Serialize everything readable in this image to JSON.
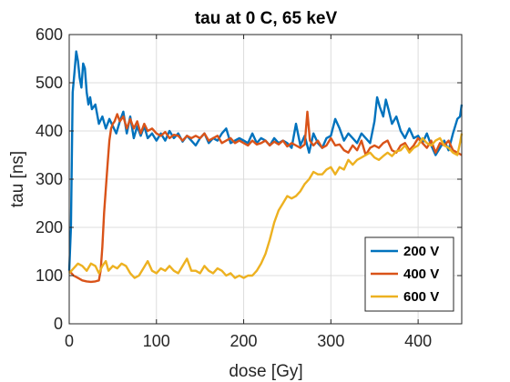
{
  "chart_data": {
    "type": "line",
    "title": "tau at 0 C, 65 keV",
    "xlabel": "dose [Gy]",
    "ylabel": "tau [ns]",
    "xlim": [
      0,
      450
    ],
    "ylim": [
      0,
      600
    ],
    "xticks": [
      0,
      100,
      200,
      300,
      400
    ],
    "yticks": [
      0,
      100,
      200,
      300,
      400,
      500,
      600
    ],
    "grid": true,
    "legend_position": "bottom-right",
    "series": [
      {
        "name": "200 V",
        "color": "#0072BD",
        "points": [
          [
            0,
            110
          ],
          [
            2,
            200
          ],
          [
            4,
            480
          ],
          [
            6,
            520
          ],
          [
            8,
            565
          ],
          [
            10,
            545
          ],
          [
            12,
            510
          ],
          [
            14,
            490
          ],
          [
            16,
            540
          ],
          [
            18,
            530
          ],
          [
            20,
            480
          ],
          [
            22,
            455
          ],
          [
            24,
            470
          ],
          [
            26,
            445
          ],
          [
            30,
            455
          ],
          [
            34,
            415
          ],
          [
            38,
            430
          ],
          [
            42,
            405
          ],
          [
            46,
            425
          ],
          [
            50,
            410
          ],
          [
            54,
            395
          ],
          [
            58,
            420
          ],
          [
            62,
            440
          ],
          [
            66,
            395
          ],
          [
            70,
            430
          ],
          [
            74,
            385
          ],
          [
            78,
            410
          ],
          [
            82,
            390
          ],
          [
            86,
            410
          ],
          [
            90,
            385
          ],
          [
            95,
            395
          ],
          [
            100,
            380
          ],
          [
            105,
            395
          ],
          [
            110,
            380
          ],
          [
            115,
            400
          ],
          [
            120,
            385
          ],
          [
            125,
            395
          ],
          [
            130,
            378
          ],
          [
            135,
            390
          ],
          [
            140,
            380
          ],
          [
            145,
            370
          ],
          [
            150,
            385
          ],
          [
            155,
            395
          ],
          [
            160,
            375
          ],
          [
            165,
            385
          ],
          [
            170,
            380
          ],
          [
            175,
            395
          ],
          [
            180,
            405
          ],
          [
            185,
            375
          ],
          [
            190,
            380
          ],
          [
            195,
            385
          ],
          [
            200,
            380
          ],
          [
            205,
            375
          ],
          [
            210,
            395
          ],
          [
            215,
            375
          ],
          [
            220,
            385
          ],
          [
            225,
            380
          ],
          [
            230,
            370
          ],
          [
            235,
            385
          ],
          [
            240,
            375
          ],
          [
            245,
            380
          ],
          [
            250,
            375
          ],
          [
            255,
            365
          ],
          [
            260,
            415
          ],
          [
            265,
            370
          ],
          [
            270,
            390
          ],
          [
            275,
            355
          ],
          [
            280,
            395
          ],
          [
            285,
            375
          ],
          [
            290,
            365
          ],
          [
            295,
            385
          ],
          [
            300,
            390
          ],
          [
            305,
            425
          ],
          [
            310,
            405
          ],
          [
            315,
            380
          ],
          [
            320,
            395
          ],
          [
            325,
            385
          ],
          [
            330,
            375
          ],
          [
            335,
            395
          ],
          [
            340,
            385
          ],
          [
            345,
            375
          ],
          [
            350,
            420
          ],
          [
            353,
            470
          ],
          [
            356,
            450
          ],
          [
            360,
            430
          ],
          [
            363,
            465
          ],
          [
            366,
            445
          ],
          [
            370,
            415
          ],
          [
            375,
            430
          ],
          [
            380,
            400
          ],
          [
            385,
            385
          ],
          [
            390,
            405
          ],
          [
            395,
            385
          ],
          [
            400,
            390
          ],
          [
            405,
            375
          ],
          [
            410,
            395
          ],
          [
            415,
            370
          ],
          [
            420,
            350
          ],
          [
            425,
            365
          ],
          [
            430,
            380
          ],
          [
            435,
            360
          ],
          [
            440,
            395
          ],
          [
            445,
            425
          ],
          [
            448,
            430
          ],
          [
            450,
            455
          ]
        ]
      },
      {
        "name": "400 V",
        "color": "#D95319",
        "points": [
          [
            0,
            110
          ],
          [
            5,
            100
          ],
          [
            10,
            95
          ],
          [
            15,
            90
          ],
          [
            20,
            88
          ],
          [
            25,
            87
          ],
          [
            30,
            88
          ],
          [
            34,
            90
          ],
          [
            36,
            110
          ],
          [
            38,
            160
          ],
          [
            40,
            230
          ],
          [
            42,
            280
          ],
          [
            44,
            330
          ],
          [
            46,
            380
          ],
          [
            48,
            405
          ],
          [
            50,
            415
          ],
          [
            52,
            420
          ],
          [
            55,
            435
          ],
          [
            58,
            420
          ],
          [
            62,
            430
          ],
          [
            66,
            405
          ],
          [
            70,
            425
          ],
          [
            74,
            405
          ],
          [
            78,
            420
          ],
          [
            82,
            395
          ],
          [
            86,
            415
          ],
          [
            90,
            400
          ],
          [
            95,
            405
          ],
          [
            100,
            395
          ],
          [
            105,
            390
          ],
          [
            110,
            398
          ],
          [
            115,
            385
          ],
          [
            120,
            392
          ],
          [
            125,
            390
          ],
          [
            130,
            380
          ],
          [
            135,
            390
          ],
          [
            140,
            385
          ],
          [
            145,
            390
          ],
          [
            150,
            385
          ],
          [
            155,
            395
          ],
          [
            160,
            380
          ],
          [
            165,
            385
          ],
          [
            170,
            390
          ],
          [
            175,
            375
          ],
          [
            180,
            380
          ],
          [
            185,
            385
          ],
          [
            190,
            375
          ],
          [
            195,
            380
          ],
          [
            200,
            375
          ],
          [
            205,
            370
          ],
          [
            210,
            380
          ],
          [
            215,
            372
          ],
          [
            220,
            375
          ],
          [
            225,
            380
          ],
          [
            230,
            370
          ],
          [
            235,
            378
          ],
          [
            240,
            372
          ],
          [
            245,
            380
          ],
          [
            250,
            368
          ],
          [
            255,
            375
          ],
          [
            260,
            370
          ],
          [
            265,
            365
          ],
          [
            270,
            372
          ],
          [
            273,
            440
          ],
          [
            276,
            380
          ],
          [
            280,
            370
          ],
          [
            285,
            380
          ],
          [
            290,
            365
          ],
          [
            295,
            370
          ],
          [
            300,
            385
          ],
          [
            305,
            370
          ],
          [
            310,
            372
          ],
          [
            315,
            360
          ],
          [
            320,
            355
          ],
          [
            325,
            370
          ],
          [
            330,
            360
          ],
          [
            335,
            380
          ],
          [
            340,
            350
          ],
          [
            345,
            365
          ],
          [
            350,
            370
          ],
          [
            355,
            365
          ],
          [
            360,
            375
          ],
          [
            365,
            380
          ],
          [
            370,
            360
          ],
          [
            375,
            355
          ],
          [
            380,
            370
          ],
          [
            385,
            375
          ],
          [
            390,
            360
          ],
          [
            395,
            370
          ],
          [
            400,
            385
          ],
          [
            405,
            375
          ],
          [
            410,
            365
          ],
          [
            415,
            380
          ],
          [
            420,
            355
          ],
          [
            425,
            375
          ],
          [
            430,
            370
          ],
          [
            435,
            380
          ],
          [
            440,
            360
          ],
          [
            445,
            355
          ],
          [
            450,
            350
          ]
        ]
      },
      {
        "name": "600 V",
        "color": "#EDB120",
        "points": [
          [
            0,
            105
          ],
          [
            5,
            115
          ],
          [
            10,
            125
          ],
          [
            15,
            120
          ],
          [
            20,
            110
          ],
          [
            25,
            125
          ],
          [
            30,
            120
          ],
          [
            34,
            105
          ],
          [
            38,
            120
          ],
          [
            42,
            130
          ],
          [
            45,
            110
          ],
          [
            50,
            120
          ],
          [
            55,
            115
          ],
          [
            60,
            125
          ],
          [
            65,
            120
          ],
          [
            70,
            105
          ],
          [
            75,
            95
          ],
          [
            80,
            100
          ],
          [
            85,
            115
          ],
          [
            90,
            130
          ],
          [
            95,
            110
          ],
          [
            100,
            105
          ],
          [
            105,
            115
          ],
          [
            110,
            110
          ],
          [
            115,
            120
          ],
          [
            120,
            110
          ],
          [
            125,
            105
          ],
          [
            130,
            120
          ],
          [
            135,
            135
          ],
          [
            140,
            110
          ],
          [
            145,
            110
          ],
          [
            150,
            105
          ],
          [
            155,
            120
          ],
          [
            160,
            110
          ],
          [
            165,
            105
          ],
          [
            170,
            115
          ],
          [
            175,
            110
          ],
          [
            180,
            100
          ],
          [
            185,
            105
          ],
          [
            190,
            95
          ],
          [
            195,
            100
          ],
          [
            200,
            95
          ],
          [
            205,
            100
          ],
          [
            210,
            100
          ],
          [
            215,
            110
          ],
          [
            220,
            125
          ],
          [
            225,
            145
          ],
          [
            230,
            175
          ],
          [
            235,
            210
          ],
          [
            240,
            235
          ],
          [
            245,
            250
          ],
          [
            250,
            265
          ],
          [
            255,
            260
          ],
          [
            260,
            265
          ],
          [
            265,
            275
          ],
          [
            270,
            290
          ],
          [
            275,
            300
          ],
          [
            280,
            315
          ],
          [
            285,
            310
          ],
          [
            290,
            310
          ],
          [
            295,
            320
          ],
          [
            300,
            325
          ],
          [
            305,
            310
          ],
          [
            310,
            325
          ],
          [
            315,
            320
          ],
          [
            320,
            340
          ],
          [
            325,
            330
          ],
          [
            330,
            340
          ],
          [
            335,
            345
          ],
          [
            340,
            350
          ],
          [
            345,
            355
          ],
          [
            350,
            345
          ],
          [
            355,
            340
          ],
          [
            360,
            348
          ],
          [
            365,
            355
          ],
          [
            370,
            348
          ],
          [
            375,
            358
          ],
          [
            380,
            360
          ],
          [
            385,
            370
          ],
          [
            390,
            355
          ],
          [
            395,
            365
          ],
          [
            400,
            370
          ],
          [
            405,
            385
          ],
          [
            410,
            375
          ],
          [
            415,
            370
          ],
          [
            420,
            380
          ],
          [
            425,
            385
          ],
          [
            430,
            370
          ],
          [
            435,
            365
          ],
          [
            440,
            355
          ],
          [
            445,
            350
          ],
          [
            448,
            375
          ],
          [
            450,
            395
          ]
        ]
      }
    ]
  }
}
